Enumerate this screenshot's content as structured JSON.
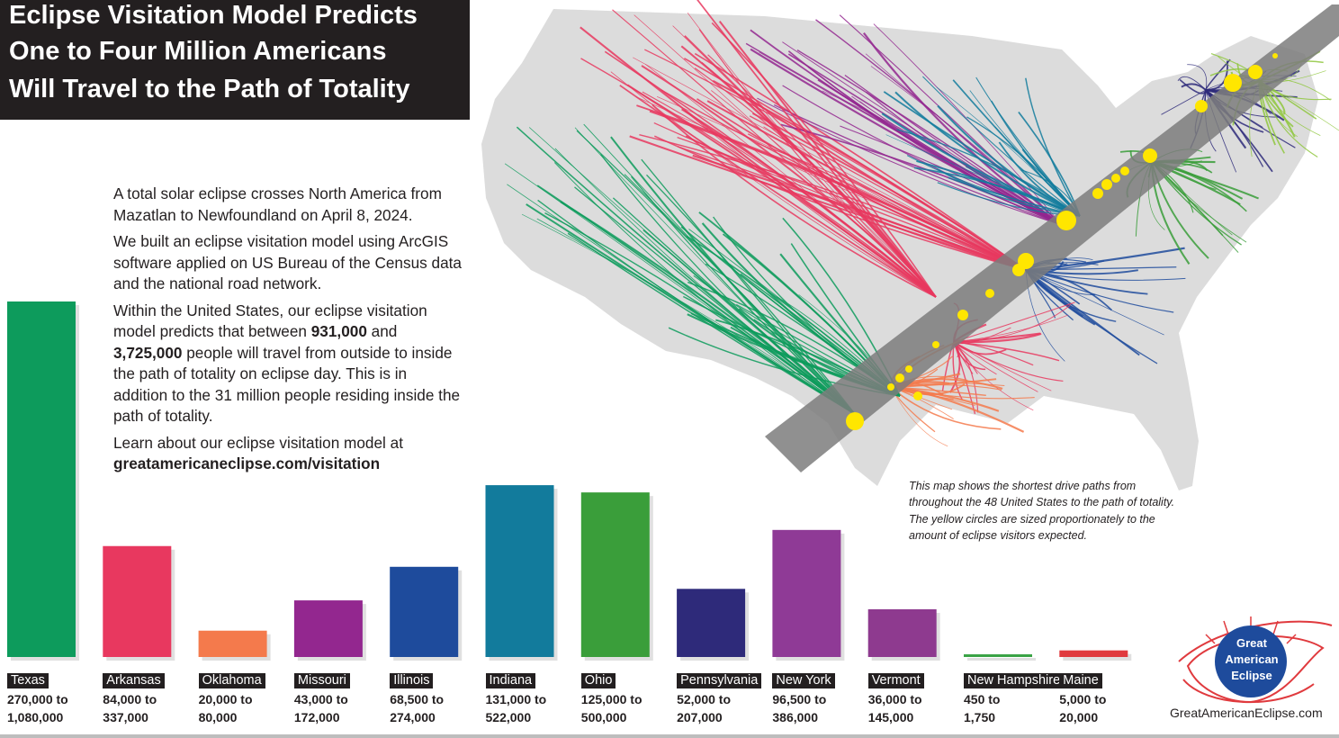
{
  "title": {
    "line1": "Eclipse Visitation Model Predicts",
    "line2": "One to Four Million Americans",
    "line3": "Will Travel to the Path of Totality"
  },
  "description": {
    "p1": "A total solar eclipse crosses North America from Mazatlan to Newfoundland on April 8, 2024.",
    "p2": "We built an eclipse visitation model using ArcGIS software applied on US Bureau of the Census data and the national road network.",
    "p3_a": "Within the United States, our eclipse visitation model predicts that between ",
    "p3_low": "931,000",
    "p3_b": " and ",
    "p3_high": "3,725,000",
    "p3_c": " people will travel from outside to inside the path of totality on eclipse day. This is in addition to the 31 million people residing inside the path of totality.",
    "p4": "Learn about our eclipse visitation model at",
    "p4_url": "greatamericaneclipse.com/visitation"
  },
  "map_note": "This map shows the shortest drive paths from throughout the 48 United States to the path of totality. The yellow circles are sized proportionately to the amount of eclipse visitors expected.",
  "logo": {
    "line1": "Great",
    "line2": "American",
    "line3": "Eclipse",
    "url": "GreatAmericanEclipse.com"
  },
  "colors": {
    "path_band": "#7d7d7d",
    "sites": "#ffe600",
    "land": "#dcdcdc"
  },
  "chart_data": {
    "type": "bar",
    "title": "",
    "xlabel": "",
    "ylabel": "",
    "ylim": [
      0,
      1080000
    ],
    "categories": [
      "Texas",
      "Arkansas",
      "Oklahoma",
      "Missouri",
      "Illinois",
      "Indiana",
      "Ohio",
      "Pennsylvania",
      "New York",
      "Vermont",
      "New Hampshire",
      "Maine"
    ],
    "low": [
      270000,
      84000,
      20000,
      43000,
      68500,
      131000,
      125000,
      52000,
      96500,
      36000,
      450,
      5000
    ],
    "high": [
      1080000,
      337000,
      80000,
      172000,
      274000,
      522000,
      500000,
      207000,
      386000,
      145000,
      1750,
      20000
    ],
    "range_labels": [
      [
        "270,000 to",
        "1,080,000"
      ],
      [
        "84,000 to",
        "337,000"
      ],
      [
        "20,000 to",
        "80,000"
      ],
      [
        "43,000 to",
        "172,000"
      ],
      [
        "68,500 to",
        "274,000"
      ],
      [
        "131,000 to",
        "522,000"
      ],
      [
        "125,000 to",
        "500,000"
      ],
      [
        "52,000 to",
        "207,000"
      ],
      [
        "96,500 to",
        "386,000"
      ],
      [
        "36,000 to",
        "145,000"
      ],
      [
        "450 to",
        "1,750"
      ],
      [
        "5,000 to",
        "20,000"
      ]
    ],
    "colors": [
      "#0d9b5c",
      "#e8385f",
      "#f47a4c",
      "#93278f",
      "#1e4b9c",
      "#127b9c",
      "#3a9e3a",
      "#2e2a7a",
      "#8f3a96",
      "#8e3a8f",
      "#3aa346",
      "#e03a3e"
    ]
  }
}
